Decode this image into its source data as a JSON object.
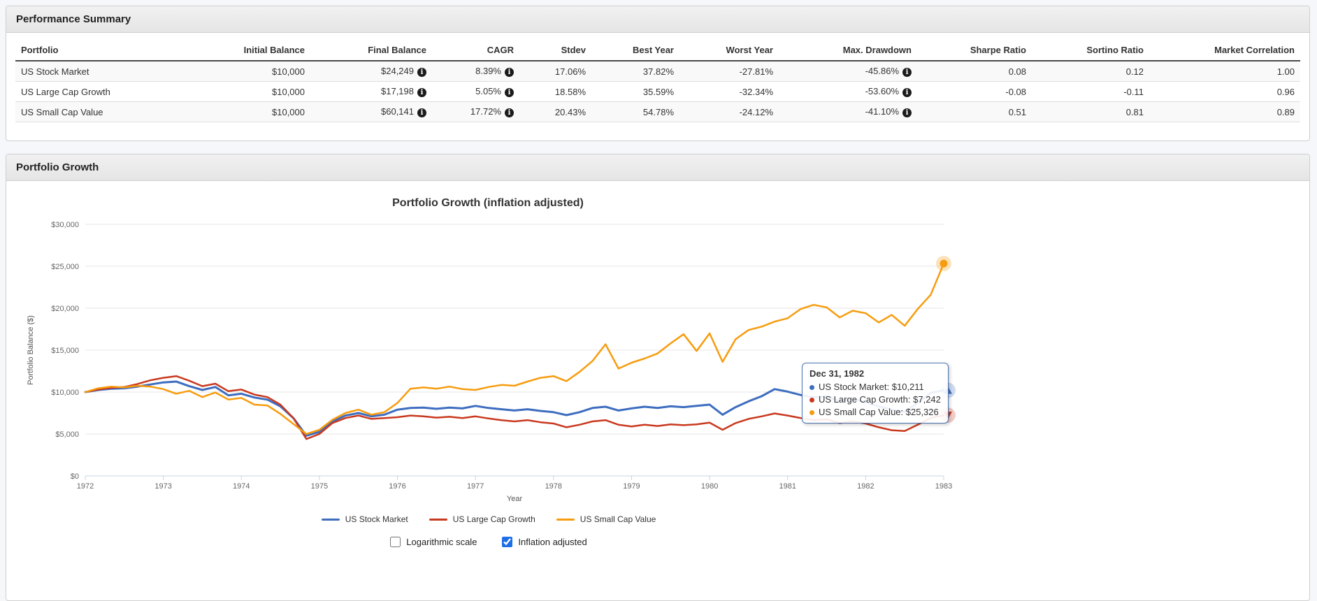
{
  "performance_summary": {
    "title": "Performance Summary",
    "columns": [
      "Portfolio",
      "Initial Balance",
      "Final Balance",
      "CAGR",
      "Stdev",
      "Best Year",
      "Worst Year",
      "Max. Drawdown",
      "Sharpe Ratio",
      "Sortino Ratio",
      "Market Correlation"
    ],
    "info_columns": [
      2,
      3,
      7
    ],
    "rows": [
      [
        "US Stock Market",
        "$10,000",
        "$24,249",
        "8.39%",
        "17.06%",
        "37.82%",
        "-27.81%",
        "-45.86%",
        "0.08",
        "0.12",
        "1.00"
      ],
      [
        "US Large Cap Growth",
        "$10,000",
        "$17,198",
        "5.05%",
        "18.58%",
        "35.59%",
        "-32.34%",
        "-53.60%",
        "-0.08",
        "-0.11",
        "0.96"
      ],
      [
        "US Small Cap Value",
        "$10,000",
        "$60,141",
        "17.72%",
        "20.43%",
        "54.78%",
        "-24.12%",
        "-41.10%",
        "0.51",
        "0.81",
        "0.89"
      ]
    ]
  },
  "portfolio_growth": {
    "title": "Portfolio Growth"
  },
  "chart_data": {
    "type": "line",
    "title": "Portfolio Growth (inflation adjusted)",
    "xlabel": "Year",
    "ylabel": "Portfolio Balance ($)",
    "xlim": [
      1972,
      1983
    ],
    "ylim": [
      0,
      30000
    ],
    "xticks": [
      1972,
      1973,
      1974,
      1975,
      1976,
      1977,
      1978,
      1979,
      1980,
      1981,
      1982,
      1983
    ],
    "yticks": [
      0,
      5000,
      10000,
      15000,
      20000,
      25000,
      30000
    ],
    "ytick_labels": [
      "$0",
      "$5,000",
      "$10,000",
      "$15,000",
      "$20,000",
      "$25,000",
      "$30,000"
    ],
    "grid": "horizontal",
    "legend_position": "bottom",
    "points_per_year": 6,
    "x_start_year": 1972,
    "series": [
      {
        "name": "US Stock Market",
        "color": "#3E6DBF",
        "stroke_width": 3,
        "end_marker": "triangle-up",
        "values": [
          10000,
          10250,
          10400,
          10450,
          10650,
          10900,
          11150,
          11250,
          10700,
          10250,
          10600,
          9600,
          9800,
          9350,
          9100,
          8300,
          6900,
          4800,
          5250,
          6500,
          7200,
          7500,
          7100,
          7300,
          7900,
          8100,
          8150,
          8000,
          8150,
          8050,
          8350,
          8100,
          7950,
          7800,
          7950,
          7750,
          7600,
          7250,
          7600,
          8100,
          8250,
          7800,
          8050,
          8250,
          8100,
          8300,
          8200,
          8350,
          8500,
          7300,
          8200,
          8900,
          9500,
          10350,
          10050,
          9650,
          9350,
          9500,
          8900,
          9150,
          8800,
          8300,
          7900,
          7650,
          8700,
          9900,
          10211
        ]
      },
      {
        "name": "US Large Cap Growth",
        "color": "#C9391F",
        "stroke_width": 2.5,
        "end_marker": "triangle-down",
        "values": [
          10000,
          10300,
          10500,
          10600,
          10950,
          11400,
          11700,
          11900,
          11350,
          10700,
          11000,
          10100,
          10300,
          9700,
          9400,
          8500,
          6900,
          4400,
          5000,
          6300,
          6900,
          7200,
          6800,
          6900,
          7000,
          7200,
          7100,
          6950,
          7050,
          6900,
          7100,
          6850,
          6650,
          6500,
          6650,
          6400,
          6250,
          5800,
          6100,
          6500,
          6650,
          6100,
          5900,
          6100,
          5950,
          6150,
          6050,
          6150,
          6350,
          5500,
          6300,
          6800,
          7100,
          7450,
          7200,
          6900,
          6650,
          6750,
          6300,
          6500,
          6250,
          5800,
          5450,
          5350,
          6100,
          6900,
          7242
        ]
      },
      {
        "name": "US Small Cap Value",
        "color": "#F79C0E",
        "stroke_width": 2.5,
        "end_marker": "dot",
        "values": [
          10000,
          10450,
          10650,
          10550,
          10750,
          10650,
          10350,
          9800,
          10150,
          9400,
          9950,
          9100,
          9300,
          8500,
          8400,
          7400,
          6200,
          5000,
          5500,
          6700,
          7500,
          7900,
          7300,
          7600,
          8700,
          10400,
          10550,
          10400,
          10650,
          10350,
          10250,
          10600,
          10850,
          10750,
          11250,
          11700,
          11900,
          11300,
          12400,
          13700,
          15700,
          12800,
          13500,
          14000,
          14600,
          15800,
          16900,
          14900,
          17000,
          13600,
          16300,
          17400,
          17800,
          18400,
          18800,
          19900,
          20400,
          20100,
          18900,
          19700,
          19400,
          18300,
          19200,
          17900,
          19900,
          21600,
          25326
        ]
      }
    ],
    "tooltip": {
      "title": "Dec 31, 1982",
      "rows": [
        {
          "label": "US Stock Market",
          "value": "$10,211",
          "color": "#3E6DBF"
        },
        {
          "label": "US Large Cap Growth",
          "value": "$7,242",
          "color": "#C9391F"
        },
        {
          "label": "US Small Cap Value",
          "value": "$25,326",
          "color": "#F79C0E"
        }
      ]
    }
  },
  "controls": {
    "logarithmic": {
      "label": "Logarithmic scale",
      "checked": false
    },
    "inflation": {
      "label": "Inflation adjusted",
      "checked": true
    }
  },
  "colors": {
    "grid": "#E6E6E6",
    "axis_line": "#C9D4E4",
    "axis_text": "#666666",
    "axis_title": "#555555",
    "chart_title": "#333333",
    "tooltip_border": "#4A74B0",
    "checkbox_accent": "#1E6FE8"
  }
}
